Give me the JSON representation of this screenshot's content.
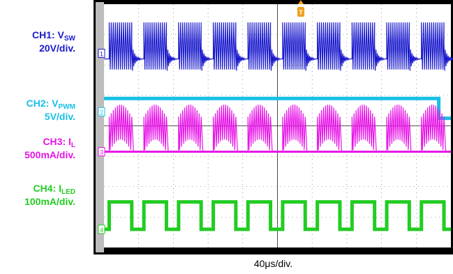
{
  "channels": [
    {
      "id": "ch1",
      "name": "CH1: V",
      "sub": "SW",
      "scale": "20V/div.",
      "color": "#1a1acc",
      "marker": "1"
    },
    {
      "id": "ch2",
      "name": "CH2: V",
      "sub": "PWM",
      "scale": "5V/div.",
      "color": "#17c0e6",
      "marker": "2"
    },
    {
      "id": "ch3",
      "name": "CH3: I",
      "sub": "L",
      "scale": "500mA/div.",
      "color": "#e614e6",
      "marker": "3"
    },
    {
      "id": "ch4",
      "name": "CH4: I",
      "sub": "LED",
      "scale": "100mA/div.",
      "color": "#22cc22",
      "marker": "4"
    }
  ],
  "timebase": "40μs/div.",
  "trigger_marker": "T",
  "colors": {
    "frame": "#000000",
    "screen": "#ffffff",
    "bezel": "#bdbdbd",
    "grid": "#555555",
    "trigger": "#f0a020"
  },
  "chart_data": {
    "type": "line",
    "grid": true,
    "divisions": {
      "x": 10,
      "y": 8
    },
    "x_unit": "div",
    "xlim": [
      0,
      10
    ],
    "series": [
      {
        "name": "CH1: VSW",
        "description": "switching bursts",
        "bursts": [
          [
            0.15,
            0.8
          ],
          [
            1.15,
            1.8
          ],
          [
            2.15,
            2.8
          ],
          [
            3.15,
            3.8
          ],
          [
            4.15,
            4.8
          ],
          [
            5.15,
            5.8
          ],
          [
            6.15,
            6.8
          ],
          [
            7.15,
            7.8
          ],
          [
            8.15,
            8.8
          ],
          [
            9.15,
            9.8
          ]
        ],
        "high_div": 2.9,
        "low_div": 1.8,
        "base_div": 2.2
      },
      {
        "name": "CH2: VPWM",
        "description": "PWM level",
        "high_until_div": 9.65,
        "high_div": 0.3,
        "low_div": -0.35
      },
      {
        "name": "CH3: IL",
        "description": "inductor current bursts",
        "bursts": [
          [
            0.15,
            0.8
          ],
          [
            1.15,
            1.8
          ],
          [
            2.15,
            2.8
          ],
          [
            3.15,
            3.8
          ],
          [
            4.15,
            4.8
          ],
          [
            5.15,
            5.8
          ],
          [
            6.15,
            6.8
          ],
          [
            7.15,
            7.8
          ],
          [
            8.15,
            8.8
          ],
          [
            9.15,
            9.8
          ]
        ],
        "peak_div": 1.15,
        "base_div": 0
      },
      {
        "name": "CH4: ILED",
        "description": "LED current pulses",
        "pulses": [
          [
            0.15,
            0.8
          ],
          [
            1.15,
            1.8
          ],
          [
            2.15,
            2.8
          ],
          [
            3.15,
            3.8
          ],
          [
            4.15,
            4.8
          ],
          [
            5.15,
            5.8
          ],
          [
            6.15,
            6.8
          ],
          [
            7.15,
            7.8
          ],
          [
            8.15,
            8.8
          ],
          [
            9.15,
            9.8
          ]
        ],
        "high_div": 0.9,
        "low_div": 0
      }
    ]
  }
}
